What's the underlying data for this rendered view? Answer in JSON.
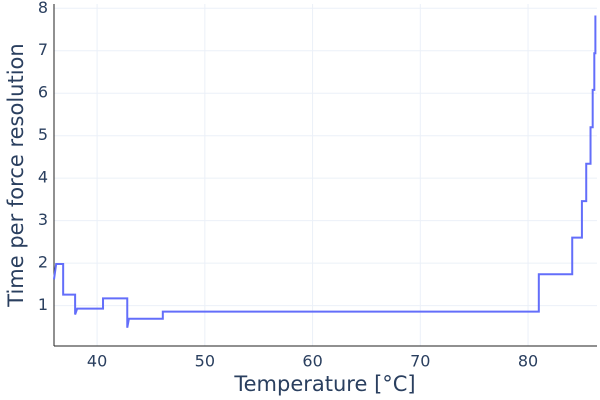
{
  "chart_data": {
    "type": "line",
    "xlabel": "Temperature [°C]",
    "ylabel": "Time per force resolution",
    "x": [
      36.0,
      36.2,
      36.85,
      36.85,
      37.96,
      37.96,
      38.15,
      40.55,
      40.55,
      42.8,
      42.8,
      42.95,
      46.1,
      46.1,
      81.0,
      81.0,
      84.1,
      84.1,
      85.0,
      85.0,
      85.4,
      85.4,
      85.8,
      85.8,
      86.0,
      86.0,
      86.15,
      86.15,
      86.25,
      86.25
    ],
    "series": [
      {
        "name": "Time per force resolution",
        "color": "#636efa",
        "values": [
          1.62,
          1.98,
          1.98,
          1.26,
          1.26,
          0.79,
          0.93,
          0.93,
          1.17,
          1.17,
          0.48,
          0.69,
          0.69,
          0.86,
          0.86,
          1.74,
          1.74,
          2.6,
          2.6,
          3.46,
          3.46,
          4.34,
          4.34,
          5.2,
          5.2,
          6.08,
          6.08,
          6.94,
          6.94,
          7.83
        ]
      }
    ],
    "xlim": [
      36,
      86.4
    ],
    "xticks": [
      40,
      50,
      60,
      70,
      80
    ],
    "ylim": [
      0.05,
      8.1
    ],
    "yticks": [
      1,
      2,
      3,
      4,
      5,
      6,
      7,
      8
    ],
    "grid": true
  }
}
